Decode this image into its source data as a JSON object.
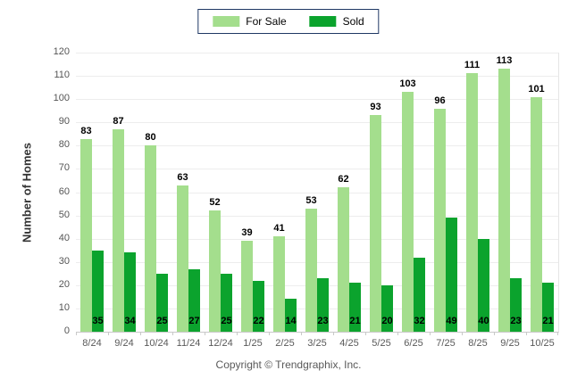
{
  "legend": {
    "items": [
      {
        "label": "For Sale",
        "color": "#A4DE8D"
      },
      {
        "label": "Sold",
        "color": "#0BA32D"
      }
    ],
    "border_color": "#1F3864"
  },
  "y_axis": {
    "title": "Number of Homes"
  },
  "footer": {
    "text": "Copyright © Trendgraphix, Inc."
  },
  "chart_data": {
    "type": "bar",
    "title": "",
    "categories": [
      "8/24",
      "9/24",
      "10/24",
      "11/24",
      "12/24",
      "1/25",
      "2/25",
      "3/25",
      "4/25",
      "5/25",
      "6/25",
      "7/25",
      "8/25",
      "9/25",
      "10/25"
    ],
    "series": [
      {
        "name": "For Sale",
        "color": "#A4DE8D",
        "values": [
          83,
          87,
          80,
          63,
          52,
          39,
          41,
          53,
          62,
          93,
          103,
          96,
          111,
          113,
          101
        ]
      },
      {
        "name": "Sold",
        "color": "#0BA32D",
        "values": [
          35,
          34,
          25,
          27,
          25,
          22,
          14,
          23,
          21,
          20,
          32,
          49,
          40,
          23,
          21
        ]
      }
    ],
    "xlabel": "",
    "ylabel": "Number of Homes",
    "ylim": [
      0,
      120
    ],
    "ytick_step": 10,
    "grid": true,
    "legend_position": "top-center",
    "value_label_style": {
      "for_sale": "above-bar",
      "sold": "inside-bar-bottom"
    }
  }
}
